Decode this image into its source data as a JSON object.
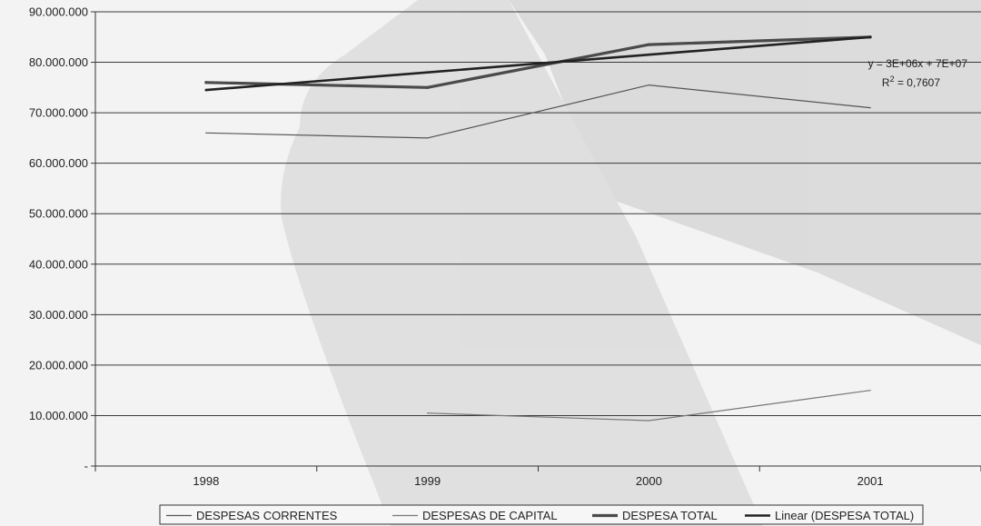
{
  "chart_data": {
    "type": "line",
    "categories": [
      "1998",
      "1999",
      "2000",
      "2001"
    ],
    "ylim": [
      0,
      90000000
    ],
    "y_ticks": [
      {
        "value": 0,
        "label": "-"
      },
      {
        "value": 10000000,
        "label": "10.000.000"
      },
      {
        "value": 20000000,
        "label": "20.000.000"
      },
      {
        "value": 30000000,
        "label": "30.000.000"
      },
      {
        "value": 40000000,
        "label": "40.000.000"
      },
      {
        "value": 50000000,
        "label": "50.000.000"
      },
      {
        "value": 60000000,
        "label": "60.000.000"
      },
      {
        "value": 70000000,
        "label": "70.000.000"
      },
      {
        "value": 80000000,
        "label": "80.000.000"
      },
      {
        "value": 90000000,
        "label": "90.000.000"
      }
    ],
    "grid": true,
    "legend_position": "bottom",
    "series": [
      {
        "name": "DESPESAS CORRENTES",
        "values": [
          66000000,
          65000000,
          75500000,
          71000000
        ],
        "color": "#555555",
        "width": 1.2
      },
      {
        "name": "DESPESAS DE CAPITAL",
        "values": [
          null,
          10500000,
          9000000,
          15000000
        ],
        "color": "#777777",
        "width": 1.2
      },
      {
        "name": "DESPESA TOTAL",
        "values": [
          76000000,
          75000000,
          83500000,
          85000000
        ],
        "color": "#4a4a4a",
        "width": 3.2
      },
      {
        "name": "Linear (DESPESA TOTAL)",
        "values": [
          74500000,
          78000000,
          81500000,
          85000000
        ],
        "color": "#222222",
        "width": 2.6
      }
    ],
    "trendline_annotation": {
      "equation": "y = 3E+06x + 7E+07",
      "r2_prefix": "R",
      "r2_sup": "2",
      "r2_suffix": " = 0,7607"
    }
  }
}
